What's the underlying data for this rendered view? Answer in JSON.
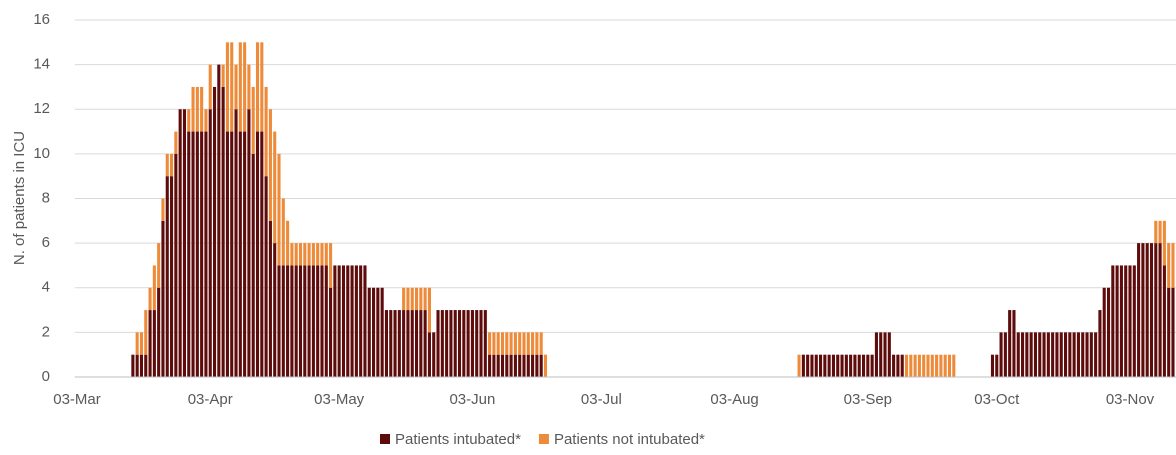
{
  "chart_data": {
    "type": "stacked-bar",
    "y_label": "N. of patients in ICU",
    "ylim": [
      0,
      16
    ],
    "yticks": [
      0,
      2,
      4,
      6,
      8,
      10,
      12,
      14,
      16
    ],
    "grid": true,
    "legend": "bottom",
    "categories": [
      "03-Mar",
      null,
      null,
      null,
      null,
      null,
      null,
      null,
      null,
      null,
      null,
      null,
      null,
      null,
      null,
      null,
      null,
      null,
      null,
      null,
      null,
      null,
      null,
      null,
      null,
      null,
      null,
      null,
      null,
      null,
      null,
      "03-Apr",
      null,
      null,
      null,
      null,
      null,
      null,
      null,
      null,
      null,
      null,
      null,
      null,
      null,
      null,
      null,
      null,
      null,
      null,
      null,
      null,
      null,
      null,
      null,
      null,
      null,
      null,
      null,
      null,
      null,
      "03-May",
      null,
      null,
      null,
      null,
      null,
      null,
      null,
      null,
      null,
      null,
      null,
      null,
      null,
      null,
      null,
      null,
      null,
      null,
      null,
      null,
      null,
      null,
      null,
      null,
      null,
      null,
      null,
      null,
      null,
      null,
      "03-Jun",
      null,
      null,
      null,
      null,
      null,
      null,
      null,
      null,
      null,
      null,
      null,
      null,
      null,
      null,
      null,
      null,
      null,
      null,
      null,
      null,
      null,
      null,
      null,
      null,
      null,
      null,
      null,
      null,
      null,
      "03-Jul",
      null,
      null,
      null,
      null,
      null,
      null,
      null,
      null,
      null,
      null,
      null,
      null,
      null,
      null,
      null,
      null,
      null,
      null,
      null,
      null,
      null,
      null,
      null,
      null,
      null,
      null,
      null,
      null,
      null,
      null,
      "03-Aug",
      null,
      null,
      null,
      null,
      null,
      null,
      null,
      null,
      null,
      null,
      null,
      null,
      null,
      null,
      null,
      null,
      null,
      null,
      null,
      null,
      null,
      null,
      null,
      null,
      null,
      null,
      null,
      null,
      null,
      null,
      "03-Sep",
      null,
      null,
      null,
      null,
      null,
      null,
      null,
      null,
      null,
      null,
      null,
      null,
      null,
      null,
      null,
      null,
      null,
      null,
      null,
      null,
      null,
      null,
      null,
      null,
      null,
      null,
      null,
      null,
      null,
      "03-Oct",
      null,
      null,
      null,
      null,
      null,
      null,
      null,
      null,
      null,
      null,
      null,
      null,
      null,
      null,
      null,
      null,
      null,
      null,
      null,
      null,
      null,
      null,
      null,
      null,
      null,
      null,
      null,
      null,
      null,
      null,
      "03-Nov",
      null,
      null,
      null,
      null,
      null,
      null,
      null,
      null,
      null,
      null
    ],
    "series": [
      {
        "name": "Patients intubated*",
        "color": "#5e0b0b",
        "values": [
          0,
          0,
          0,
          0,
          0,
          0,
          0,
          0,
          0,
          0,
          0,
          0,
          0,
          1,
          1,
          1,
          1,
          3,
          3,
          4,
          7,
          9,
          9,
          10,
          12,
          12,
          11,
          11,
          11,
          11,
          11,
          12,
          13,
          14,
          13,
          11,
          11,
          12,
          11,
          11,
          12,
          10,
          11,
          11,
          9,
          7,
          6,
          5,
          5,
          5,
          5,
          5,
          5,
          5,
          5,
          5,
          5,
          5,
          5,
          4,
          5,
          5,
          5,
          5,
          5,
          5,
          5,
          5,
          4,
          4,
          4,
          4,
          3,
          3,
          3,
          3,
          3,
          3,
          3,
          3,
          3,
          3,
          2,
          2,
          3,
          3,
          3,
          3,
          3,
          3,
          3,
          3,
          3,
          3,
          3,
          3,
          1,
          1,
          1,
          1,
          1,
          1,
          1,
          1,
          1,
          1,
          1,
          1,
          1,
          0,
          0,
          0,
          0,
          0,
          0,
          0,
          0,
          0,
          0,
          0,
          0,
          0,
          0,
          0,
          0,
          0,
          0,
          0,
          0,
          0,
          0,
          0,
          0,
          0,
          0,
          0,
          0,
          0,
          0,
          0,
          0,
          0,
          0,
          0,
          0,
          0,
          0,
          0,
          0,
          0,
          0,
          0,
          0,
          0,
          0,
          0,
          0,
          0,
          0,
          0,
          0,
          0,
          0,
          0,
          0,
          0,
          0,
          0,
          0,
          1,
          1,
          1,
          1,
          1,
          1,
          1,
          1,
          1,
          1,
          1,
          1,
          1,
          1,
          1,
          1,
          1,
          2,
          2,
          2,
          2,
          1,
          1,
          1,
          0,
          0,
          0,
          0,
          0,
          0,
          0,
          0,
          0,
          0,
          0,
          0,
          0,
          0,
          0,
          0,
          0,
          0,
          0,
          0,
          1,
          1,
          2,
          2,
          3,
          3,
          2,
          2,
          2,
          2,
          2,
          2,
          2,
          2,
          2,
          2,
          2,
          2,
          2,
          2,
          2,
          2,
          2,
          2,
          2,
          3,
          4,
          4,
          5,
          5,
          5,
          5,
          5,
          5,
          6,
          6,
          6,
          6,
          6,
          6,
          5,
          4,
          4
        ]
      },
      {
        "name": "Patients not intubated*",
        "color": "#ee8b3a",
        "values": [
          0,
          0,
          0,
          0,
          0,
          0,
          0,
          0,
          0,
          0,
          0,
          0,
          0,
          0,
          1,
          1,
          2,
          1,
          2,
          2,
          1,
          1,
          1,
          1,
          0,
          0,
          1,
          2,
          2,
          2,
          1,
          2,
          0,
          0,
          1,
          4,
          4,
          2,
          4,
          4,
          2,
          3,
          4,
          4,
          4,
          5,
          5,
          5,
          3,
          2,
          1,
          1,
          1,
          1,
          1,
          1,
          1,
          1,
          1,
          2,
          0,
          0,
          0,
          0,
          0,
          0,
          0,
          0,
          0,
          0,
          0,
          0,
          0,
          0,
          0,
          0,
          1,
          1,
          1,
          1,
          1,
          1,
          2,
          0,
          0,
          0,
          0,
          0,
          0,
          0,
          0,
          0,
          0,
          0,
          0,
          0,
          1,
          1,
          1,
          1,
          1,
          1,
          1,
          1,
          1,
          1,
          1,
          1,
          1,
          1,
          0,
          0,
          0,
          0,
          0,
          0,
          0,
          0,
          0,
          0,
          0,
          0,
          0,
          0,
          0,
          0,
          0,
          0,
          0,
          0,
          0,
          0,
          0,
          0,
          0,
          0,
          0,
          0,
          0,
          0,
          0,
          0,
          0,
          0,
          0,
          0,
          0,
          0,
          0,
          0,
          0,
          0,
          0,
          0,
          0,
          0,
          0,
          0,
          0,
          0,
          0,
          0,
          0,
          0,
          0,
          0,
          0,
          0,
          1,
          0,
          0,
          0,
          0,
          0,
          0,
          0,
          0,
          0,
          0,
          0,
          0,
          0,
          0,
          0,
          0,
          0,
          0,
          0,
          0,
          0,
          0,
          0,
          0,
          1,
          1,
          1,
          1,
          1,
          1,
          1,
          1,
          1,
          1,
          1,
          1,
          0,
          0,
          0,
          0,
          0,
          0,
          0,
          0,
          0,
          0,
          0,
          0,
          0,
          0,
          0,
          0,
          0,
          0,
          0,
          0,
          0,
          0,
          0,
          0,
          0,
          0,
          0,
          0,
          0,
          0,
          0,
          0,
          0,
          0,
          0,
          0,
          0,
          0,
          0,
          0,
          0,
          0,
          0,
          0,
          0,
          0,
          1,
          1,
          2,
          2,
          2
        ]
      }
    ]
  }
}
